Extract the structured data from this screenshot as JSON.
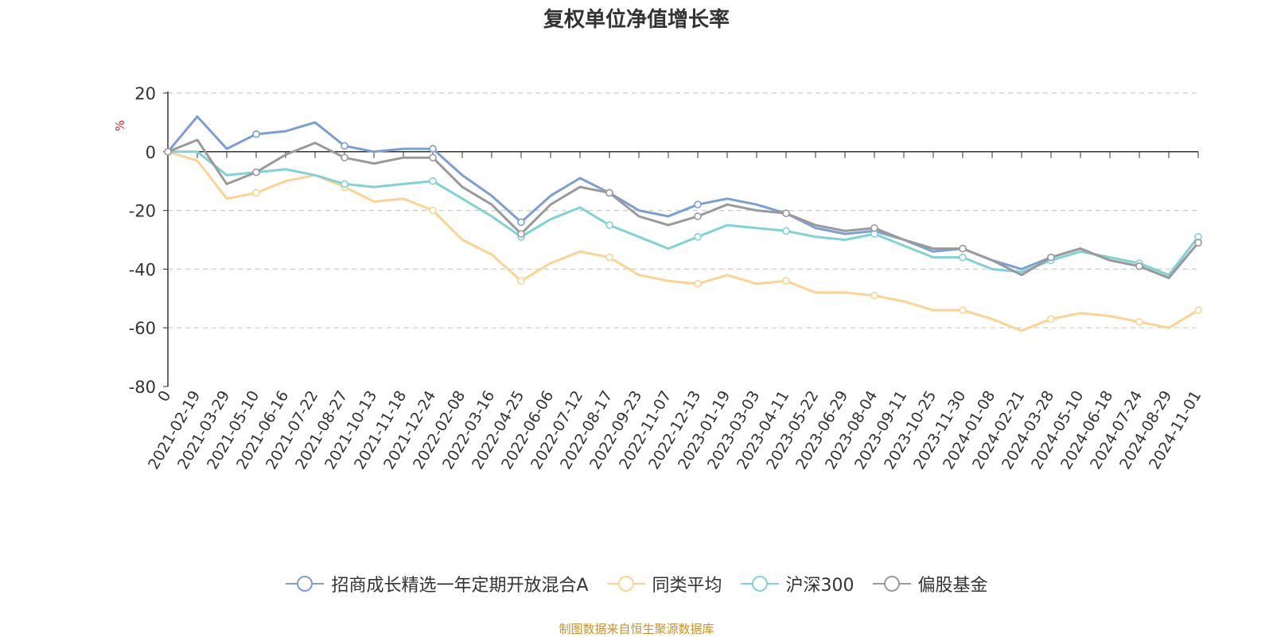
{
  "chart_data": {
    "type": "line",
    "title": "复权单位净值增长率",
    "ylabel": "%",
    "xlabel": "",
    "ylim": [
      -80,
      20
    ],
    "y_ticks": [
      20,
      0,
      -20,
      -40,
      -60,
      -80
    ],
    "grid": true,
    "legend_position": "bottom",
    "source": "制图数据来自恒生聚源数据库",
    "categories": [
      "0",
      "2021-02-19",
      "2021-03-29",
      "2021-05-10",
      "2021-06-16",
      "2021-07-22",
      "2021-08-27",
      "2021-10-13",
      "2021-11-18",
      "2021-12-24",
      "2022-02-08",
      "2022-03-16",
      "2022-04-25",
      "2022-06-06",
      "2022-07-12",
      "2022-08-17",
      "2022-09-23",
      "2022-11-07",
      "2022-12-13",
      "2023-01-19",
      "2023-03-03",
      "2023-04-11",
      "2023-05-22",
      "2023-06-29",
      "2023-08-04",
      "2023-09-11",
      "2023-10-25",
      "2023-11-30",
      "2024-01-08",
      "2024-02-21",
      "2024-03-28",
      "2024-05-10",
      "2024-06-18",
      "2024-07-24",
      "2024-08-29",
      "2024-11-01"
    ],
    "series": [
      {
        "name": "招商成长精选一年定期开放混合A",
        "color": "#7b9fd4",
        "values": [
          0,
          12,
          1,
          6,
          7,
          10,
          2,
          0,
          1,
          1,
          -8,
          -15,
          -24,
          -15,
          -9,
          -14,
          -20,
          -22,
          -18,
          -16,
          -18,
          -21,
          -26,
          -28,
          -27,
          -30,
          -34,
          -33,
          -37,
          -40,
          -36,
          -33,
          -37,
          -39,
          -43,
          -31
        ]
      },
      {
        "name": "同类平均",
        "color": "#fcd491",
        "values": [
          0,
          -3,
          -16,
          -14,
          -10,
          -8,
          -12,
          -17,
          -16,
          -20,
          -30,
          -35,
          -44,
          -38,
          -34,
          -36,
          -42,
          -44,
          -45,
          -42,
          -45,
          -44,
          -48,
          -48,
          -49,
          -51,
          -54,
          -54,
          -57,
          -61,
          -57,
          -55,
          -56,
          -58,
          -60,
          -54
        ]
      },
      {
        "name": "沪深300",
        "color": "#7fd3d4",
        "values": [
          0,
          0,
          -8,
          -7,
          -6,
          -8,
          -11,
          -12,
          -11,
          -10,
          -16,
          -22,
          -29,
          -23,
          -19,
          -25,
          -29,
          -33,
          -29,
          -25,
          -26,
          -27,
          -29,
          -30,
          -28,
          -32,
          -36,
          -36,
          -40,
          -41,
          -37,
          -34,
          -36,
          -38,
          -42,
          -29
        ]
      },
      {
        "name": "偏股基金",
        "color": "#9a9a9a",
        "values": [
          0,
          4,
          -11,
          -7,
          -1,
          3,
          -2,
          -4,
          -2,
          -2,
          -12,
          -18,
          -28,
          -18,
          -12,
          -14,
          -22,
          -25,
          -22,
          -18,
          -20,
          -21,
          -25,
          -27,
          -26,
          -30,
          -33,
          -33,
          -37,
          -42,
          -36,
          -33,
          -37,
          -39,
          -43,
          -31
        ]
      }
    ]
  }
}
